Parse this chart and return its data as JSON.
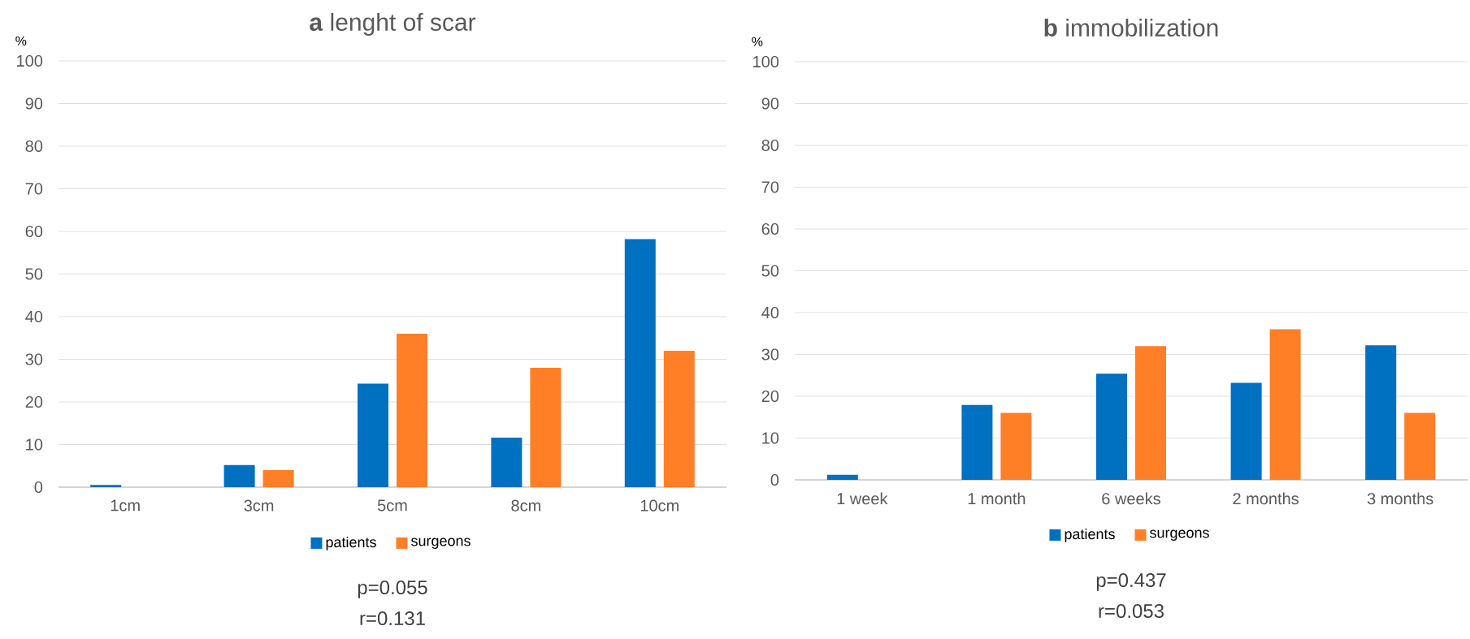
{
  "chart_data": [
    {
      "type": "bar",
      "title": "**a**     lenght of scar",
      "ylabel": "%",
      "categories": [
        "1cm",
        "3cm",
        "5cm",
        "8cm",
        "10cm"
      ],
      "series": [
        {
          "name": "patients",
          "color": "#0070c0",
          "values": [
            0.5,
            5.2,
            24.3,
            11.6,
            58.2
          ]
        },
        {
          "name": "surgeons",
          "color": "#ff7f27",
          "values": [
            0,
            4,
            36,
            28,
            32
          ]
        }
      ],
      "ylim": [
        0,
        100
      ],
      "yticks": [
        0,
        10,
        20,
        30,
        40,
        50,
        60,
        70,
        80,
        90,
        100
      ],
      "grid": "y",
      "legend": "bottom",
      "annotations": [
        "p=0.055",
        "r=0.131"
      ]
    },
    {
      "type": "bar",
      "title": "**b**     immobilization",
      "ylabel": "%",
      "categories": [
        "1 week",
        "1 month",
        "6 weeks",
        "2 months",
        "3 months"
      ],
      "series": [
        {
          "name": "patients",
          "color": "#0070c0",
          "values": [
            1.2,
            17.9,
            25.4,
            23.2,
            32.2
          ]
        },
        {
          "name": "surgeons",
          "color": "#ff7f27",
          "values": [
            0,
            16,
            32,
            36,
            16
          ]
        }
      ],
      "ylim": [
        0,
        100
      ],
      "yticks": [
        0,
        10,
        20,
        30,
        40,
        50,
        60,
        70,
        80,
        90,
        100
      ],
      "grid": "y",
      "legend": "bottom",
      "annotations": [
        "p=0.437",
        "r=0.053"
      ]
    }
  ]
}
